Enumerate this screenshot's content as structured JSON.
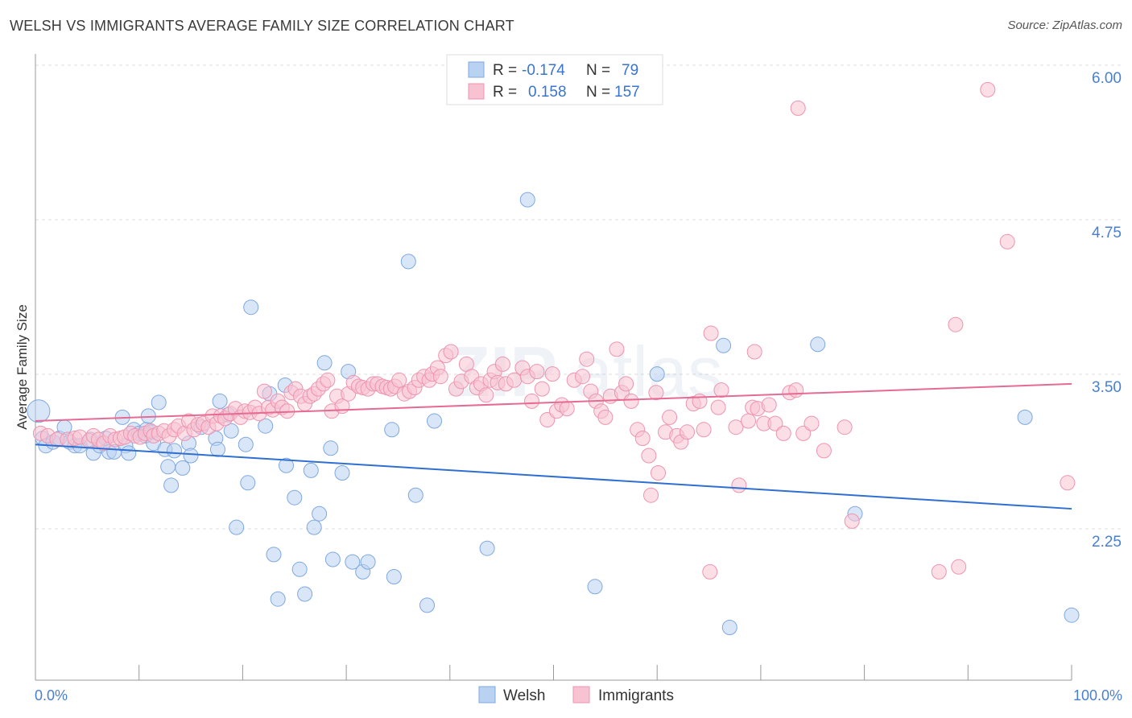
{
  "title": "WELSH VS IMMIGRANTS AVERAGE FAMILY SIZE CORRELATION CHART",
  "source": "Source: ZipAtlas.com",
  "watermark": "ZIPatlas",
  "colors": {
    "welsh_fill": "#b9d2f2",
    "welsh_stroke": "#7fa8e0",
    "welsh_line": "#2e6fd1",
    "immigrants_fill": "#f7c3d2",
    "immigrants_stroke": "#ee94b0",
    "immigrants_line": "#e56b94",
    "tick_label": "#4a7fd0"
  },
  "legend_top": {
    "welsh": {
      "r_label": "R =",
      "r_value": "-0.174",
      "n_label": "N =",
      "n_value": "79"
    },
    "immigrants": {
      "r_label": "R =",
      "r_value": "0.158",
      "n_label": "N =",
      "n_value": "157"
    }
  },
  "legend_bottom": [
    "Welsh",
    "Immigrants"
  ],
  "chart_data": {
    "type": "scatter",
    "title": "WELSH VS IMMIGRANTS AVERAGE FAMILY SIZE CORRELATION CHART",
    "xlabel": "",
    "ylabel": "Average Family Size",
    "xlim": [
      0,
      100
    ],
    "ylim": [
      1.2,
      6.15
    ],
    "x_tick_labels": [
      "0.0%",
      "100.0%"
    ],
    "y_ticks": [
      2.25,
      3.5,
      4.75,
      6.0
    ],
    "y_tick_labels": [
      "2.25",
      "3.50",
      "4.75",
      "6.00"
    ],
    "grid": true,
    "legend_position": "top-center",
    "series": [
      {
        "name": "Welsh",
        "trend": {
          "x": [
            0,
            100
          ],
          "y": [
            3.03,
            2.51
          ]
        },
        "points": [
          [
            0.3,
            3.3,
            14
          ],
          [
            0.7,
            3.08,
            9
          ],
          [
            1,
            3.02,
            9
          ],
          [
            1.7,
            3.05,
            9
          ],
          [
            2.3,
            3.08,
            9
          ],
          [
            2.8,
            3.17,
            9
          ],
          [
            3.3,
            3.05,
            9
          ],
          [
            3.8,
            3.02,
            9
          ],
          [
            4.3,
            3.02,
            9
          ],
          [
            5.3,
            3.07,
            9
          ],
          [
            5.6,
            2.96,
            9
          ],
          [
            6.2,
            3.02,
            9
          ],
          [
            6.8,
            3.08,
            9
          ],
          [
            7.1,
            2.97,
            9
          ],
          [
            7.6,
            2.97,
            9
          ],
          [
            8.4,
            3.25,
            9
          ],
          [
            8.7,
            3.02,
            9
          ],
          [
            9,
            2.96,
            9
          ],
          [
            9.5,
            3.15,
            9
          ],
          [
            10,
            3.12,
            9
          ],
          [
            10.6,
            3.1,
            9
          ],
          [
            10.7,
            3.15,
            9
          ],
          [
            10.9,
            3.26,
            9
          ],
          [
            11.2,
            3.13,
            9
          ],
          [
            11.4,
            3.04,
            9
          ],
          [
            11.9,
            3.37,
            9
          ],
          [
            12.5,
            2.99,
            9
          ],
          [
            12.8,
            2.85,
            9
          ],
          [
            13.1,
            2.7,
            9
          ],
          [
            13.4,
            2.98,
            9
          ],
          [
            14.2,
            2.84,
            9
          ],
          [
            14.8,
            3.04,
            9
          ],
          [
            15,
            2.94,
            9
          ],
          [
            16,
            3.17,
            9
          ],
          [
            17.4,
            3.08,
            9
          ],
          [
            17.6,
            2.99,
            9
          ],
          [
            17.8,
            3.38,
            9
          ],
          [
            18.6,
            3.27,
            9
          ],
          [
            18.9,
            3.14,
            9
          ],
          [
            19.4,
            2.36,
            9
          ],
          [
            20.3,
            3.03,
            9
          ],
          [
            20.5,
            2.72,
            9
          ],
          [
            20.8,
            4.14,
            9
          ],
          [
            22.2,
            3.18,
            9
          ],
          [
            22.6,
            3.44,
            9
          ],
          [
            23,
            2.14,
            9
          ],
          [
            23.4,
            1.78,
            9
          ],
          [
            24.1,
            3.51,
            9
          ],
          [
            24.2,
            2.86,
            9
          ],
          [
            25,
            2.6,
            9
          ],
          [
            25.5,
            2.02,
            9
          ],
          [
            26,
            1.82,
            9
          ],
          [
            26.6,
            2.82,
            9
          ],
          [
            26.9,
            2.36,
            9
          ],
          [
            27.4,
            2.47,
            9
          ],
          [
            27.9,
            3.69,
            9
          ],
          [
            28.5,
            3.0,
            9
          ],
          [
            28.7,
            2.1,
            9
          ],
          [
            29.6,
            2.8,
            9
          ],
          [
            30.2,
            3.62,
            9
          ],
          [
            30.6,
            2.08,
            9
          ],
          [
            31.6,
            2.0,
            9
          ],
          [
            32.1,
            2.08,
            9
          ],
          [
            34.4,
            3.15,
            9
          ],
          [
            34.6,
            1.96,
            9
          ],
          [
            36,
            4.51,
            9
          ],
          [
            36.7,
            2.62,
            9
          ],
          [
            37.8,
            1.73,
            9
          ],
          [
            38.5,
            3.22,
            9
          ],
          [
            43.6,
            2.19,
            9
          ],
          [
            47.5,
            5.01,
            9
          ],
          [
            54,
            1.88,
            9
          ],
          [
            60,
            3.6,
            9
          ],
          [
            66.4,
            3.83,
            9
          ],
          [
            67,
            1.55,
            9
          ],
          [
            75.5,
            3.84,
            9
          ],
          [
            79.1,
            2.47,
            9
          ],
          [
            95.5,
            3.25,
            9
          ],
          [
            100,
            1.65,
            9
          ]
        ]
      },
      {
        "name": "Immigrants",
        "trend": {
          "x": [
            0,
            100
          ],
          "y": [
            3.22,
            3.52
          ]
        },
        "points": [
          [
            0.5,
            3.12,
            9
          ],
          [
            1.2,
            3.1,
            9
          ],
          [
            2.1,
            3.07,
            9
          ],
          [
            3.1,
            3.07,
            9
          ],
          [
            3.8,
            3.08,
            9
          ],
          [
            4.3,
            3.09,
            9
          ],
          [
            5.2,
            3.06,
            9
          ],
          [
            5.6,
            3.1,
            9
          ],
          [
            6.1,
            3.07,
            9
          ],
          [
            6.6,
            3.04,
            9
          ],
          [
            7.2,
            3.1,
            9
          ],
          [
            7.7,
            3.07,
            9
          ],
          [
            8.2,
            3.08,
            9
          ],
          [
            8.6,
            3.09,
            9
          ],
          [
            9.2,
            3.12,
            9
          ],
          [
            9.6,
            3.1,
            9
          ],
          [
            10.1,
            3.09,
            9
          ],
          [
            10.6,
            3.12,
            9
          ],
          [
            11.1,
            3.14,
            9
          ],
          [
            11.4,
            3.1,
            9
          ],
          [
            11.9,
            3.12,
            9
          ],
          [
            12.4,
            3.14,
            9
          ],
          [
            12.9,
            3.1,
            9
          ],
          [
            13.4,
            3.15,
            9
          ],
          [
            13.8,
            3.18,
            9
          ],
          [
            14.4,
            3.12,
            9
          ],
          [
            14.8,
            3.22,
            9
          ],
          [
            15.3,
            3.15,
            9
          ],
          [
            15.7,
            3.19,
            9
          ],
          [
            16.2,
            3.2,
            9
          ],
          [
            16.7,
            3.17,
            9
          ],
          [
            17.1,
            3.26,
            9
          ],
          [
            17.5,
            3.2,
            9
          ],
          [
            17.9,
            3.26,
            9
          ],
          [
            18.3,
            3.24,
            9
          ],
          [
            18.8,
            3.28,
            9
          ],
          [
            19.3,
            3.32,
            9
          ],
          [
            19.8,
            3.25,
            9
          ],
          [
            20.2,
            3.3,
            9
          ],
          [
            20.7,
            3.29,
            9
          ],
          [
            21.2,
            3.33,
            9
          ],
          [
            21.6,
            3.28,
            9
          ],
          [
            22.1,
            3.46,
            9
          ],
          [
            22.5,
            3.33,
            9
          ],
          [
            22.9,
            3.31,
            9
          ],
          [
            23.4,
            3.38,
            9
          ],
          [
            23.8,
            3.33,
            9
          ],
          [
            24.3,
            3.3,
            9
          ],
          [
            24.7,
            3.45,
            9
          ],
          [
            25.1,
            3.48,
            9
          ],
          [
            25.6,
            3.42,
            9
          ],
          [
            26,
            3.36,
            9
          ],
          [
            26.5,
            3.42,
            9
          ],
          [
            26.9,
            3.44,
            9
          ],
          [
            27.3,
            3.48,
            9
          ],
          [
            27.8,
            3.52,
            9
          ],
          [
            28.2,
            3.55,
            9
          ],
          [
            28.6,
            3.3,
            9
          ],
          [
            29.1,
            3.42,
            9
          ],
          [
            29.6,
            3.34,
            9
          ],
          [
            30.2,
            3.44,
            9
          ],
          [
            30.7,
            3.53,
            9
          ],
          [
            31.2,
            3.5,
            9
          ],
          [
            31.6,
            3.49,
            9
          ],
          [
            32.1,
            3.48,
            9
          ],
          [
            32.6,
            3.52,
            9
          ],
          [
            33,
            3.52,
            9
          ],
          [
            33.5,
            3.5,
            9
          ],
          [
            33.9,
            3.49,
            9
          ],
          [
            34.3,
            3.48,
            9
          ],
          [
            34.7,
            3.5,
            9
          ],
          [
            35.1,
            3.55,
            9
          ],
          [
            35.6,
            3.44,
            9
          ],
          [
            36.1,
            3.46,
            9
          ],
          [
            36.6,
            3.49,
            9
          ],
          [
            37,
            3.55,
            9
          ],
          [
            37.5,
            3.58,
            9
          ],
          [
            38,
            3.55,
            9
          ],
          [
            38.3,
            3.6,
            9
          ],
          [
            38.8,
            3.65,
            9
          ],
          [
            39.1,
            3.58,
            9
          ],
          [
            39.6,
            3.75,
            9
          ],
          [
            40.1,
            3.78,
            9
          ],
          [
            40.6,
            3.48,
            9
          ],
          [
            41.1,
            3.54,
            9
          ],
          [
            41.6,
            3.68,
            9
          ],
          [
            42.1,
            3.58,
            9
          ],
          [
            42.6,
            3.49,
            9
          ],
          [
            43,
            3.52,
            9
          ],
          [
            43.5,
            3.43,
            9
          ],
          [
            43.9,
            3.55,
            9
          ],
          [
            44.3,
            3.62,
            9
          ],
          [
            44.6,
            3.53,
            9
          ],
          [
            45.1,
            3.68,
            9
          ],
          [
            45.4,
            3.52,
            9
          ],
          [
            46.2,
            3.55,
            9
          ],
          [
            47,
            3.65,
            9
          ],
          [
            47.5,
            3.58,
            9
          ],
          [
            47.9,
            3.38,
            9
          ],
          [
            48.4,
            3.62,
            9
          ],
          [
            48.9,
            3.48,
            9
          ],
          [
            49.4,
            3.23,
            9
          ],
          [
            49.9,
            3.6,
            9
          ],
          [
            50.3,
            3.3,
            9
          ],
          [
            50.8,
            3.35,
            9
          ],
          [
            51.3,
            3.32,
            9
          ],
          [
            52,
            3.55,
            9
          ],
          [
            52.8,
            3.58,
            9
          ],
          [
            53.2,
            3.72,
            9
          ],
          [
            53.6,
            3.46,
            9
          ],
          [
            54.1,
            3.38,
            9
          ],
          [
            54.6,
            3.3,
            9
          ],
          [
            55,
            3.25,
            9
          ],
          [
            55.5,
            3.42,
            9
          ],
          [
            56.1,
            3.8,
            9
          ],
          [
            56.6,
            3.45,
            9
          ],
          [
            57,
            3.52,
            9
          ],
          [
            57.5,
            3.38,
            9
          ],
          [
            58.1,
            3.15,
            9
          ],
          [
            58.6,
            3.08,
            9
          ],
          [
            59.2,
            2.94,
            9
          ],
          [
            59.9,
            3.45,
            9
          ],
          [
            60.1,
            2.8,
            9
          ],
          [
            60.8,
            3.13,
            9
          ],
          [
            61.2,
            3.25,
            9
          ],
          [
            61.9,
            3.1,
            9
          ],
          [
            62.3,
            3.05,
            9
          ],
          [
            62.9,
            3.13,
            9
          ],
          [
            63.5,
            3.36,
            9
          ],
          [
            64.1,
            3.38,
            9
          ],
          [
            64.5,
            3.15,
            9
          ],
          [
            65.2,
            3.93,
            9
          ],
          [
            65.9,
            3.33,
            9
          ],
          [
            66.2,
            3.47,
            9
          ],
          [
            67.6,
            3.17,
            9
          ],
          [
            67.9,
            2.7,
            9
          ],
          [
            68.8,
            3.22,
            9
          ],
          [
            69.2,
            3.33,
            9
          ],
          [
            69.7,
            3.32,
            9
          ],
          [
            70.3,
            3.2,
            9
          ],
          [
            70.8,
            3.35,
            9
          ],
          [
            71.4,
            3.2,
            9
          ],
          [
            72.2,
            3.12,
            9
          ],
          [
            72.8,
            3.45,
            9
          ],
          [
            73.4,
            3.47,
            9
          ],
          [
            74.1,
            3.12,
            9
          ],
          [
            74.9,
            3.2,
            9
          ],
          [
            76.1,
            2.98,
            9
          ],
          [
            78.1,
            3.17,
            9
          ],
          [
            78.8,
            2.41,
            9
          ],
          [
            87.2,
            2.0,
            9
          ],
          [
            89.1,
            2.04,
            9
          ],
          [
            93.8,
            4.67,
            9
          ],
          [
            99.6,
            2.72,
            9
          ],
          [
            59.4,
            2.62,
            9
          ],
          [
            65.1,
            2.0,
            9
          ],
          [
            69.4,
            3.78,
            9
          ],
          [
            73.6,
            5.75,
            9
          ],
          [
            88.8,
            4.0,
            9
          ],
          [
            91.9,
            5.9,
            9
          ]
        ]
      }
    ]
  }
}
